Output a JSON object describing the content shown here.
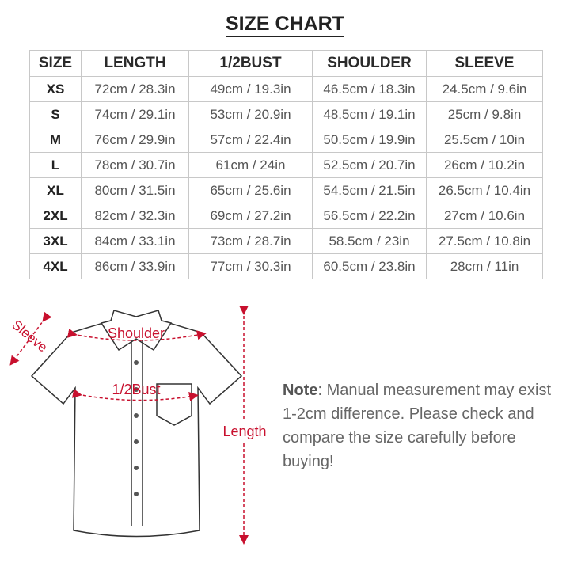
{
  "title": "SIZE CHART",
  "table": {
    "headers": [
      "SIZE",
      "LENGTH",
      "1/2BUST",
      "SHOULDER",
      "SLEEVE"
    ],
    "rows": [
      [
        "XS",
        "72cm / 28.3in",
        "49cm / 19.3in",
        "46.5cm / 18.3in",
        "24.5cm / 9.6in"
      ],
      [
        "S",
        "74cm / 29.1in",
        "53cm / 20.9in",
        "48.5cm / 19.1in",
        "25cm / 9.8in"
      ],
      [
        "M",
        "76cm / 29.9in",
        "57cm / 22.4in",
        "50.5cm / 19.9in",
        "25.5cm / 10in"
      ],
      [
        "L",
        "78cm / 30.7in",
        "61cm / 24in",
        "52.5cm / 20.7in",
        "26cm / 10.2in"
      ],
      [
        "XL",
        "80cm / 31.5in",
        "65cm / 25.6in",
        "54.5cm / 21.5in",
        "26.5cm / 10.4in"
      ],
      [
        "2XL",
        "82cm / 32.3in",
        "69cm / 27.2in",
        "56.5cm / 22.2in",
        "27cm / 10.6in"
      ],
      [
        "3XL",
        "84cm / 33.1in",
        "73cm / 28.7in",
        "58.5cm / 23in",
        "27.5cm / 10.8in"
      ],
      [
        "4XL",
        "86cm / 33.9in",
        "77cm / 30.3in",
        "60.5cm / 23.8in",
        "28cm / 11in"
      ]
    ]
  },
  "diagram": {
    "labels": {
      "shoulder": "Shoulder",
      "bust": "1/2Bust",
      "sleeve": "Sleeve",
      "length": "Length"
    },
    "accent_color": "#c8102e"
  },
  "note": {
    "bold": "Note",
    "text": ": Manual measurement may exist 1-2cm difference. Please check and compare the size carefully before buying!"
  }
}
